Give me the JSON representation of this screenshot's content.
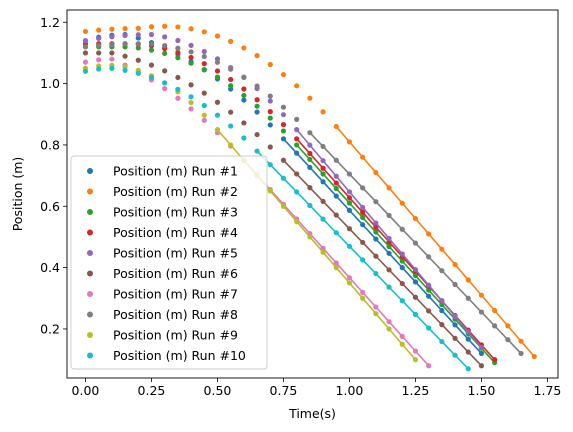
{
  "chart_data": {
    "type": "scatter",
    "title": "",
    "xlabel": "Time(s)",
    "ylabel": "Position (m)",
    "xlim": [
      -0.07,
      1.79
    ],
    "ylim": [
      0.04,
      1.24
    ],
    "xticks": [
      0.0,
      0.25,
      0.5,
      0.75,
      1.0,
      1.25,
      1.5,
      1.75
    ],
    "yticks": [
      0.2,
      0.4,
      0.6,
      0.8,
      1.0,
      1.2
    ],
    "xtick_labels": [
      "0.00",
      "0.25",
      "0.50",
      "0.75",
      "1.00",
      "1.25",
      "1.50",
      "1.75"
    ],
    "ytick_labels": [
      "0.2",
      "0.4",
      "0.6",
      "0.8",
      "1.0",
      "1.2"
    ],
    "grid": false,
    "legend_position": "lower-left",
    "series": [
      {
        "name": "Position (m) Run #1",
        "color": "#1f77b4",
        "t0": 0.0,
        "dt": 0.05,
        "y0": 1.14,
        "y_peak": 1.16,
        "t_peak": 0.15,
        "fit": {
          "t_start": 0.75,
          "t_end": 1.5,
          "y_start": 0.82,
          "y_end": 0.12
        }
      },
      {
        "name": "Position (m) Run #2",
        "color": "#ff7f0e",
        "t0": 0.0,
        "dt": 0.05,
        "y0": 1.17,
        "y_peak": 1.18,
        "t_peak": 0.2,
        "fit": {
          "t_start": 0.95,
          "t_end": 1.7,
          "y_start": 0.86,
          "y_end": 0.11
        }
      },
      {
        "name": "Position (m) Run #3",
        "color": "#2ca02c",
        "t0": 0.0,
        "dt": 0.05,
        "y0": 1.12,
        "y_peak": 1.12,
        "t_peak": 0.1,
        "fit": {
          "t_start": 0.8,
          "t_end": 1.55,
          "y_start": 0.8,
          "y_end": 0.09
        }
      },
      {
        "name": "Position (m) Run #4",
        "color": "#d62728",
        "t0": 0.0,
        "dt": 0.05,
        "y0": 1.13,
        "y_peak": 1.13,
        "t_peak": 0.15,
        "fit": {
          "t_start": 0.8,
          "t_end": 1.55,
          "y_start": 0.82,
          "y_end": 0.1
        }
      },
      {
        "name": "Position (m) Run #5",
        "color": "#9467bd",
        "t0": 0.0,
        "dt": 0.05,
        "y0": 1.14,
        "y_peak": 1.16,
        "t_peak": 0.25,
        "fit": {
          "t_start": 0.8,
          "t_end": 1.5,
          "y_start": 0.85,
          "y_end": 0.14
        }
      },
      {
        "name": "Position (m) Run #6",
        "color": "#8c564b",
        "t0": 0.0,
        "dt": 0.05,
        "y0": 1.1,
        "y_peak": 1.1,
        "t_peak": 0.1,
        "fit": {
          "t_start": 0.75,
          "t_end": 1.5,
          "y_start": 0.75,
          "y_end": 0.08
        }
      },
      {
        "name": "Position (m) Run #7",
        "color": "#e377c2",
        "t0": 0.0,
        "dt": 0.05,
        "y0": 1.07,
        "y_peak": 1.08,
        "t_peak": 0.1,
        "fit": {
          "t_start": 0.6,
          "t_end": 1.3,
          "y_start": 0.75,
          "y_end": 0.08
        }
      },
      {
        "name": "Position (m) Run #8",
        "color": "#7f7f7f",
        "t0": 0.0,
        "dt": 0.05,
        "y0": 1.12,
        "y_peak": 1.13,
        "t_peak": 0.2,
        "fit": {
          "t_start": 0.85,
          "t_end": 1.65,
          "y_start": 0.84,
          "y_end": 0.12
        }
      },
      {
        "name": "Position (m) Run #9",
        "color": "#bcbd22",
        "t0": 0.0,
        "dt": 0.05,
        "y0": 1.05,
        "y_peak": 1.06,
        "t_peak": 0.1,
        "fit": {
          "t_start": 0.5,
          "t_end": 1.25,
          "y_start": 0.85,
          "y_end": 0.1
        }
      },
      {
        "name": "Position (m) Run #10",
        "color": "#17becf",
        "t0": 0.0,
        "dt": 0.05,
        "y0": 1.04,
        "y_peak": 1.05,
        "t_peak": 0.1,
        "fit": {
          "t_start": 0.65,
          "t_end": 1.45,
          "y_start": 0.78,
          "y_end": 0.07
        }
      }
    ]
  }
}
